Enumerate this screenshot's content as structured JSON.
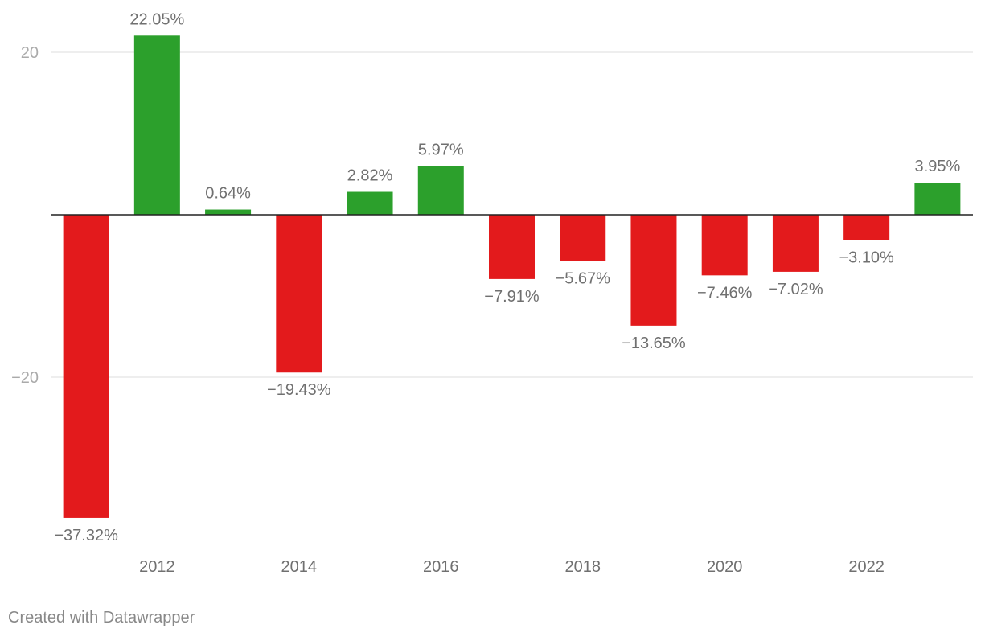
{
  "chart_data": {
    "type": "bar",
    "categories": [
      "2011",
      "2012",
      "2013",
      "2014",
      "2015",
      "2016",
      "2017",
      "2018",
      "2019",
      "2020",
      "2021",
      "2022",
      "2023"
    ],
    "values": [
      -37.32,
      22.05,
      0.64,
      -19.43,
      2.82,
      5.97,
      -7.91,
      -5.67,
      -13.65,
      -7.46,
      -7.02,
      -3.1,
      3.95
    ],
    "data_labels": [
      "−37.32%",
      "22.05%",
      "0.64%",
      "−19.43%",
      "2.82%",
      "5.97%",
      "−7.91%",
      "−5.67%",
      "−13.65%",
      "−7.46%",
      "−7.02%",
      "−3.10%",
      "3.95%"
    ],
    "x_ticks": [
      "2012",
      "2014",
      "2016",
      "2018",
      "2020",
      "2022"
    ],
    "y_ticks": [
      {
        "value": 20,
        "label": "20"
      },
      {
        "value": -20,
        "label": "−20"
      }
    ],
    "ylim": [
      -37.32,
      22.05
    ],
    "grid": true,
    "colors": {
      "positive": "#2ca02c",
      "negative": "#e31a1c",
      "label": "#707070",
      "tick": "#aaaaaa",
      "grid": "#dddddd",
      "baseline": "#222222"
    },
    "title": "",
    "xlabel": "",
    "ylabel": ""
  },
  "footer": {
    "credit": "Created with Datawrapper"
  }
}
